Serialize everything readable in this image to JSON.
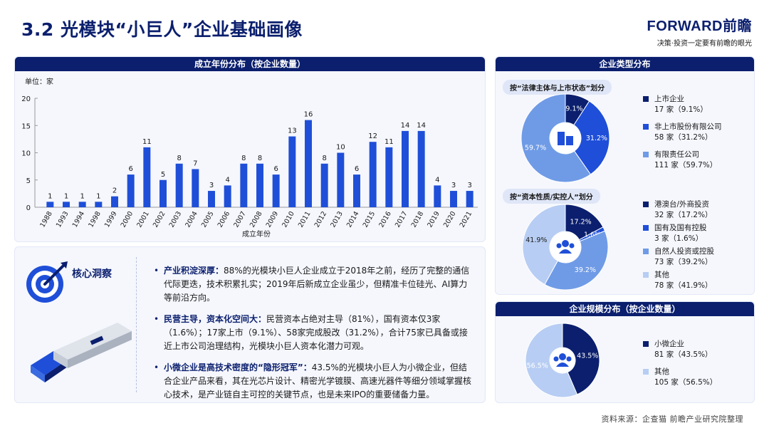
{
  "title": "3.2 光模块“小巨人”企业基础画像",
  "brand": {
    "name": "FORWARD前瞻",
    "slogan": "决策·投资一定要有前瞻的眼光"
  },
  "colors": {
    "navy": "#0b1f6e",
    "bar": "#1f4fd8",
    "light": "#6f9be6",
    "pale": "#b7cdf3"
  },
  "year_panel": {
    "title": "成立年份分布（按企业数量）",
    "unit": "单位：家",
    "xlabel": "成立年份"
  },
  "type_panel": {
    "title": "企业类型分布",
    "legal_label": "按“法律主体与上市状态”划分",
    "capital_label": "按“资本性质/实控人”划分",
    "legal_legend": [
      {
        "name": "上市企业",
        "value": "17 家（9.1%）"
      },
      {
        "name": "非上市股份有限公司",
        "value": "58 家（31.2%）"
      },
      {
        "name": "有限责任公司",
        "value": "111 家（59.7%）"
      }
    ],
    "capital_legend": [
      {
        "name": "港澳台/外商投资",
        "value": "32 家（17.2%）"
      },
      {
        "name": "国有及国有控股",
        "value": "3 家（1.6%）"
      },
      {
        "name": "自然人投资或控股",
        "value": "73 家（39.2%）"
      },
      {
        "name": "其他",
        "value": "78 家（41.9%）"
      }
    ]
  },
  "scale_panel": {
    "title": "企业规模分布（按企业数量）",
    "legend": [
      {
        "name": "小微企业",
        "value": "81 家（43.5%）"
      },
      {
        "name": "其他",
        "value": "105 家（56.5%）"
      }
    ]
  },
  "insight": {
    "title": "核心洞察",
    "items": [
      {
        "bold": "产业积淀深厚：",
        "text": "88%的光模块小巨人企业成立于2018年之前，经历了完整的通信代际更迭，技术积累扎实；2019年后新成立企业虽少，但精准卡位硅光、AI算力等前沿方向。"
      },
      {
        "bold": "民营主导，资本化空间大：",
        "text": "民营资本占绝对主导（81%），国有资本仅3家（1.6%）；17家上市（9.1%）、58家完成股改（31.2%），合计75家已具备或接近上市公司治理结构，光模块小巨人资本化潜力可观。"
      },
      {
        "bold": "小微企业是高技术密度的“隐形冠军”：",
        "text": "43.5%的光模块小巨人为小微企业，但结合企业产品来看，其在光芯片设计、精密光学镀膜、高速光器件等细分领域掌握核心技术，是产业链自主可控的关键节点，也是未来IPO的重要储备力量。"
      }
    ]
  },
  "source": "资料来源：企查猫 前瞻产业研究院整理",
  "chart_data": [
    {
      "type": "bar",
      "title": "成立年份分布（按企业数量）",
      "xlabel": "成立年份",
      "ylabel": "单位：家",
      "ylim": [
        0,
        20
      ],
      "yticks": [
        0,
        5,
        10,
        15,
        20
      ],
      "categories": [
        "1988",
        "1993",
        "1994",
        "1998",
        "1999",
        "2000",
        "2001",
        "2002",
        "2003",
        "2004",
        "2005",
        "2006",
        "2007",
        "2008",
        "2009",
        "2010",
        "2011",
        "2012",
        "2013",
        "2014",
        "2015",
        "2016",
        "2017",
        "2018",
        "2019",
        "2020",
        "2021"
      ],
      "values": [
        1,
        1,
        1,
        1,
        2,
        6,
        11,
        5,
        8,
        7,
        3,
        4,
        8,
        8,
        6,
        13,
        16,
        8,
        10,
        6,
        12,
        11,
        14,
        14,
        4,
        3,
        3
      ]
    },
    {
      "type": "pie",
      "title": "按“法律主体与上市状态”划分",
      "categories": [
        "上市企业",
        "非上市股份有限公司",
        "有限责任公司"
      ],
      "values": [
        17,
        58,
        111
      ],
      "labels": [
        "9.1%",
        "31.2%",
        "59.7%"
      ],
      "colors": [
        "#0b1f6e",
        "#1f4fd8",
        "#6f9be6"
      ]
    },
    {
      "type": "pie",
      "title": "按“资本性质/实控人”划分",
      "categories": [
        "港澳台/外商投资",
        "国有及国有控股",
        "自然人投资或控股",
        "其他"
      ],
      "values": [
        32,
        3,
        73,
        78
      ],
      "labels": [
        "17.2%",
        "1.6%",
        "39.2%",
        "41.9%"
      ],
      "colors": [
        "#0b1f6e",
        "#1f4fd8",
        "#6f9be6",
        "#b7cdf3"
      ]
    },
    {
      "type": "pie",
      "title": "企业规模分布（按企业数量）",
      "categories": [
        "小微企业",
        "其他"
      ],
      "values": [
        81,
        105
      ],
      "labels": [
        "43.5%",
        "56.5%"
      ],
      "colors": [
        "#0b1f6e",
        "#b7cdf3"
      ]
    }
  ]
}
